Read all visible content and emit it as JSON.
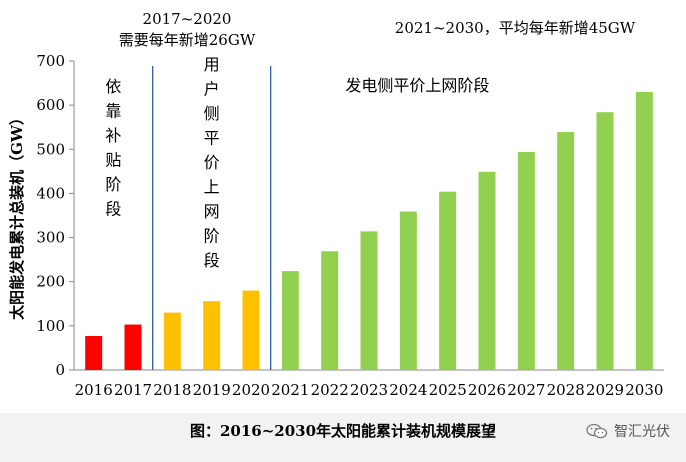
{
  "chart_data": {
    "type": "bar",
    "categories": [
      "2016",
      "2017",
      "2018",
      "2019",
      "2020",
      "2021",
      "2022",
      "2023",
      "2024",
      "2025",
      "2026",
      "2027",
      "2028",
      "2029",
      "2030"
    ],
    "values": [
      77,
      103,
      130,
      156,
      180,
      224,
      269,
      314,
      359,
      404,
      449,
      494,
      539,
      584,
      630
    ],
    "ylabel": "太阳能发电累计总装机（GW）",
    "ylim": [
      0,
      700
    ],
    "yticks": [
      0,
      100,
      200,
      300,
      400,
      500,
      600,
      700
    ],
    "grid": false,
    "phase_colors": [
      "#ff0000",
      "#ffc000",
      "#92d050"
    ],
    "phases": [
      {
        "label": "依靠补贴阶段",
        "from": "2016",
        "to": "2017"
      },
      {
        "label": "用户侧平价上网阶段",
        "from": "2018",
        "to": "2020"
      },
      {
        "label": "发电侧平价上网阶段",
        "from": "2021",
        "to": "2030"
      }
    ],
    "annotations": {
      "period_2017_2020_line1": "2017~2020",
      "period_2017_2020_line2": "需要每年新增26GW",
      "period_2021_2030": "2021~2030，平均每年新增45GW"
    },
    "divider_color": "#2e5ea8"
  },
  "caption": "图：2016~2030年太阳能累计装机规模展望",
  "watermark": "智汇光伏"
}
